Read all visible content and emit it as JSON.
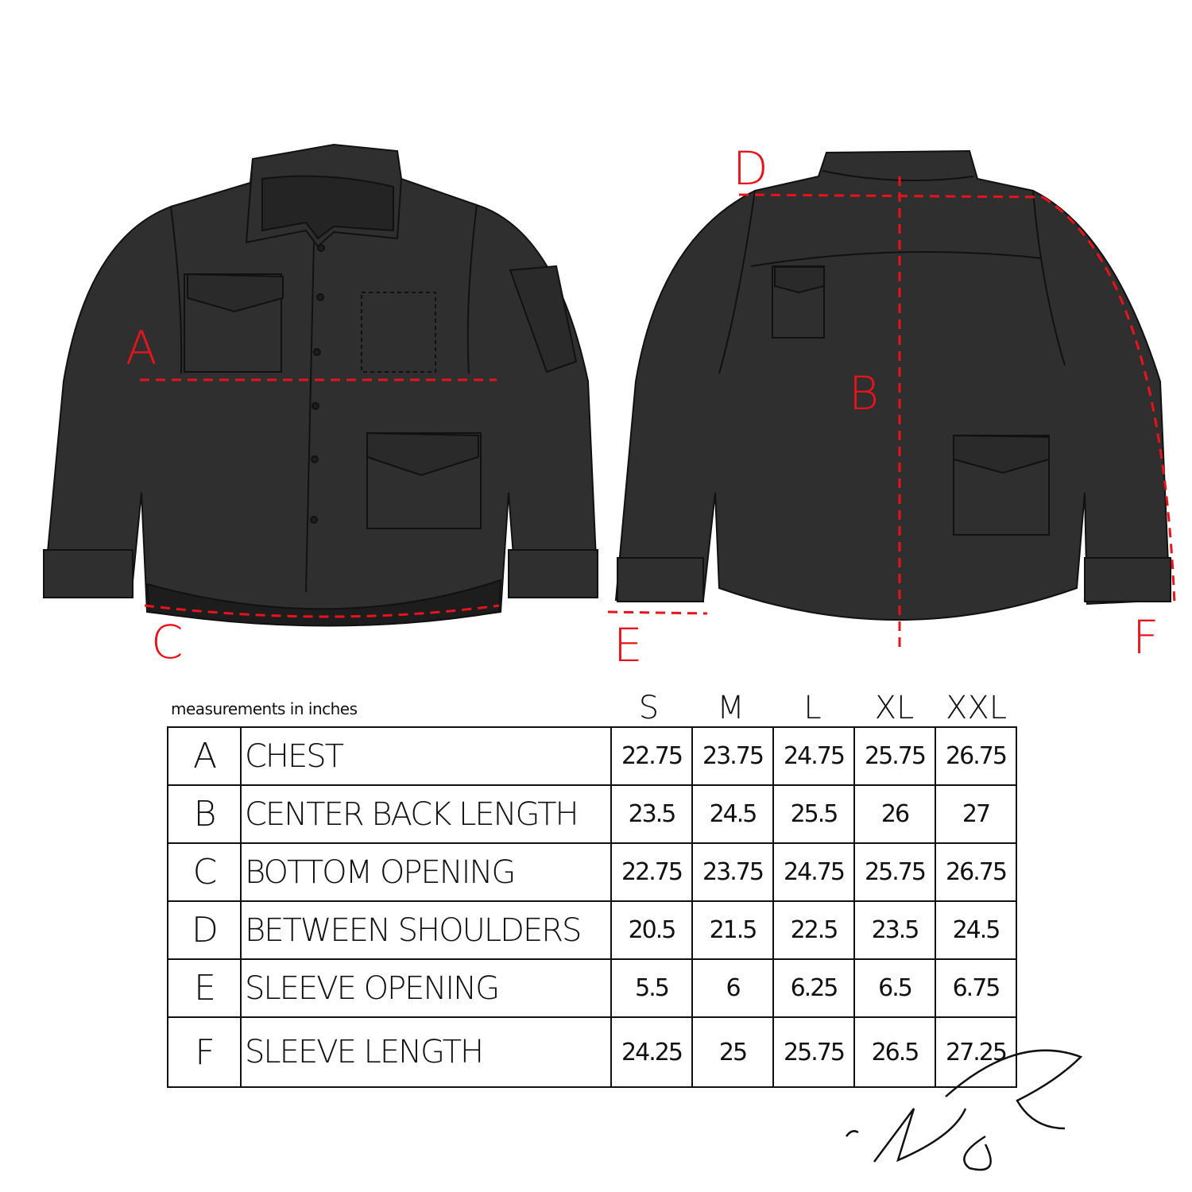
{
  "diagram": {
    "labels": {
      "a": "A",
      "b": "B",
      "c": "C",
      "d": "D",
      "e": "E",
      "f": "F"
    },
    "jacket_color": "#2f2f2f",
    "measure_line_color": "#e8141b"
  },
  "table": {
    "note": "measurements in inches",
    "sizes": [
      "S",
      "M",
      "L",
      "XL",
      "XXL"
    ],
    "rows": [
      {
        "letter": "A",
        "name": "Chest",
        "values": [
          "22.75",
          "23.75",
          "24.75",
          "25.75",
          "26.75"
        ]
      },
      {
        "letter": "B",
        "name": "Center Back Length",
        "values": [
          "23.5",
          "24.5",
          "25.5",
          "26",
          "27"
        ]
      },
      {
        "letter": "C",
        "name": "Bottom Opening",
        "values": [
          "22.75",
          "23.75",
          "24.75",
          "25.75",
          "26.75"
        ]
      },
      {
        "letter": "D",
        "name": "Between Shoulders",
        "values": [
          "20.5",
          "21.5",
          "22.5",
          "23.5",
          "24.5"
        ]
      },
      {
        "letter": "E",
        "name": "Sleeve Opening",
        "values": [
          "5.5",
          "6",
          "6.25",
          "6.5",
          "6.75"
        ]
      },
      {
        "letter": "F",
        "name": "Sleeve Length",
        "values": [
          "24.25",
          "25",
          "25.75",
          "26.5",
          "27.25"
        ]
      }
    ]
  }
}
